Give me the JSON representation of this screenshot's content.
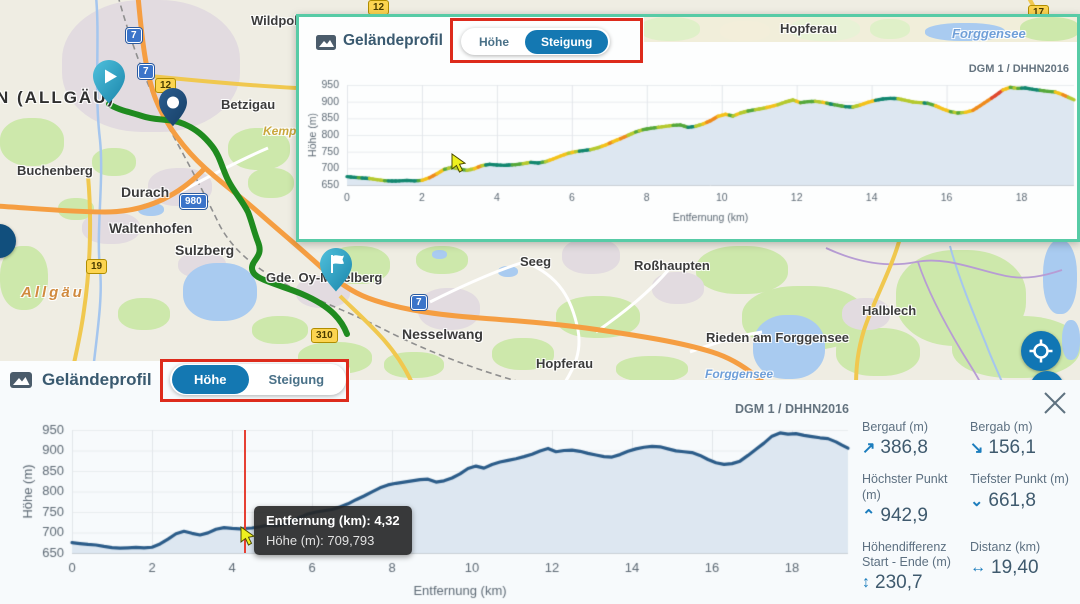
{
  "inset_panel": {
    "title": "Geländeprofil",
    "tabs": [
      {
        "label": "Höhe",
        "active": false
      },
      {
        "label": "Steigung",
        "active": true
      }
    ],
    "dgm_label": "DGM 1 / DHHN2016",
    "map_strip": {
      "labels": [
        "Hopferau",
        "Forggensee"
      ]
    }
  },
  "bottom_panel": {
    "title": "Geländeprofil",
    "tabs": [
      {
        "label": "Höhe",
        "active": true
      },
      {
        "label": "Steigung",
        "active": false
      }
    ],
    "dgm_label": "DGM 1 / DHHN2016",
    "tooltip": {
      "line1": "Entfernung (km): 4,32",
      "line2": "Höhe (m): 709,793"
    },
    "stats": [
      {
        "name": "bergauf",
        "label": "Bergauf (m)",
        "value": "386,8",
        "icon": "arrow-up-right"
      },
      {
        "name": "bergab",
        "label": "Bergab (m)",
        "value": "156,1",
        "icon": "arrow-down-right"
      },
      {
        "name": "hoechster-punkt",
        "label": "Höchster Punkt (m)",
        "value": "942,9",
        "icon": "chevron-up"
      },
      {
        "name": "tiefster-punkt",
        "label": "Tiefster Punkt (m)",
        "value": "661,8",
        "icon": "chevron-down"
      },
      {
        "name": "hoehendifferenz",
        "label": "Höhendifferenz Start - Ende (m)",
        "value": "230,7",
        "icon": "arrow-up-down"
      },
      {
        "name": "distanz",
        "label": "Distanz (km)",
        "value": "19,40",
        "icon": "arrow-left-right"
      }
    ]
  },
  "map": {
    "labels": [
      {
        "text": "N (ALLGÄU)"
      },
      {
        "text": "Wildpoldsried"
      },
      {
        "text": "Betzigau"
      },
      {
        "text": "Kempter Wald"
      },
      {
        "text": "Buchenberg"
      },
      {
        "text": "Durach"
      },
      {
        "text": "Waltenhofen"
      },
      {
        "text": "Sulzberg"
      },
      {
        "text": "Allgäu"
      },
      {
        "text": "Gde. Oy-Mittelberg"
      },
      {
        "text": "Nesselwang"
      },
      {
        "text": "Seeg"
      },
      {
        "text": "Roßhaupten"
      },
      {
        "text": "Hopferau"
      },
      {
        "text": "Rieden am Forggensee"
      },
      {
        "text": "Halblech"
      },
      {
        "text": "Forggensee"
      }
    ],
    "shields": [
      {
        "text": "7",
        "type": "motorway"
      },
      {
        "text": "7",
        "type": "motorway"
      },
      {
        "text": "980",
        "type": "motorway"
      },
      {
        "text": "7",
        "type": "motorway"
      },
      {
        "text": "12",
        "type": "federal"
      },
      {
        "text": "12",
        "type": "federal"
      },
      {
        "text": "19",
        "type": "federal"
      },
      {
        "text": "310",
        "type": "federal"
      },
      {
        "text": "17",
        "type": "federal"
      }
    ],
    "markers": [
      {
        "name": "start-marker",
        "icon": "play"
      },
      {
        "name": "waypoint-marker",
        "icon": "circle"
      },
      {
        "name": "end-marker",
        "icon": "flag"
      }
    ]
  },
  "chart_data": {
    "type": "area",
    "title": "Geländeprofil",
    "xlabel": "Entfernung (km)",
    "ylabel": "Höhe (m)",
    "xlim": [
      0,
      19.4
    ],
    "ylim": [
      650,
      950
    ],
    "xticks": [
      0,
      2,
      4,
      6,
      8,
      10,
      12,
      14,
      16,
      18
    ],
    "yticks": [
      650,
      700,
      750,
      800,
      850,
      900,
      950
    ],
    "x": [
      0,
      0.2,
      0.4,
      0.6,
      0.8,
      1.0,
      1.2,
      1.4,
      1.6,
      1.8,
      2.0,
      2.2,
      2.4,
      2.6,
      2.8,
      3.0,
      3.2,
      3.4,
      3.6,
      3.8,
      4.0,
      4.2,
      4.32,
      4.5,
      4.7,
      4.9,
      5.1,
      5.3,
      5.5,
      5.7,
      5.9,
      6.1,
      6.3,
      6.5,
      6.7,
      6.9,
      7.1,
      7.3,
      7.5,
      7.7,
      7.9,
      8.1,
      8.3,
      8.5,
      8.7,
      8.9,
      9.1,
      9.3,
      9.5,
      9.7,
      9.9,
      10.1,
      10.3,
      10.5,
      10.7,
      10.9,
      11.1,
      11.3,
      11.5,
      11.7,
      11.9,
      12.1,
      12.3,
      12.5,
      12.7,
      12.9,
      13.1,
      13.3,
      13.5,
      13.7,
      13.9,
      14.1,
      14.3,
      14.5,
      14.7,
      14.9,
      15.1,
      15.3,
      15.5,
      15.7,
      15.9,
      16.1,
      16.3,
      16.5,
      16.7,
      16.9,
      17.1,
      17.3,
      17.5,
      17.7,
      17.9,
      18.1,
      18.3,
      18.5,
      18.7,
      18.9,
      19.1,
      19.25,
      19.4
    ],
    "y": [
      675.1,
      673,
      671,
      669.5,
      666,
      663,
      661.8,
      662.5,
      663.5,
      662.5,
      664,
      672,
      684,
      697,
      703,
      698,
      694,
      699,
      708,
      712,
      710,
      709,
      709.8,
      711,
      714,
      718,
      716,
      720,
      728,
      737,
      745,
      750,
      753,
      756,
      762,
      770,
      780,
      789,
      799,
      809,
      816,
      820,
      823,
      826,
      829,
      830,
      823,
      826,
      833,
      843,
      856,
      862,
      857,
      866,
      872,
      876,
      880,
      885,
      891,
      899,
      905,
      897,
      900,
      901,
      898,
      893,
      889,
      885,
      884,
      890,
      898,
      904,
      908,
      910,
      909,
      904,
      899,
      897,
      895,
      888,
      878,
      870,
      866,
      868,
      874,
      888,
      903,
      918,
      935,
      942.9,
      940,
      941,
      937,
      934,
      931,
      929,
      921,
      913,
      905.7
    ],
    "charts": [
      {
        "id": "inset-chart",
        "mode": "slope",
        "view": "Steigung"
      },
      {
        "id": "main-chart",
        "mode": "elevation",
        "view": "Höhe",
        "cursor": {
          "x": 4.32,
          "y": 709.793
        }
      }
    ],
    "stats": {
      "bergauf_m": 386.8,
      "bergab_m": 156.1,
      "hoechster_punkt_m": 942.9,
      "tiefster_punkt_m": 661.8,
      "hoehendifferenz_start_ende_m": 230.7,
      "distanz_km": 19.4
    },
    "colors": {
      "accent_blue": "#1478b2",
      "line_blue": "#2b5c89",
      "area_fill": "#dde7f1",
      "slope_palette": [
        "#12876f",
        "#55a83a",
        "#b5c92e",
        "#f4c21a",
        "#ef8b1c",
        "#e0482e"
      ],
      "annotation_red": "#dd2b1c",
      "panel_border_teal": "#57cba6",
      "route_green": "#1f8b1f"
    }
  }
}
